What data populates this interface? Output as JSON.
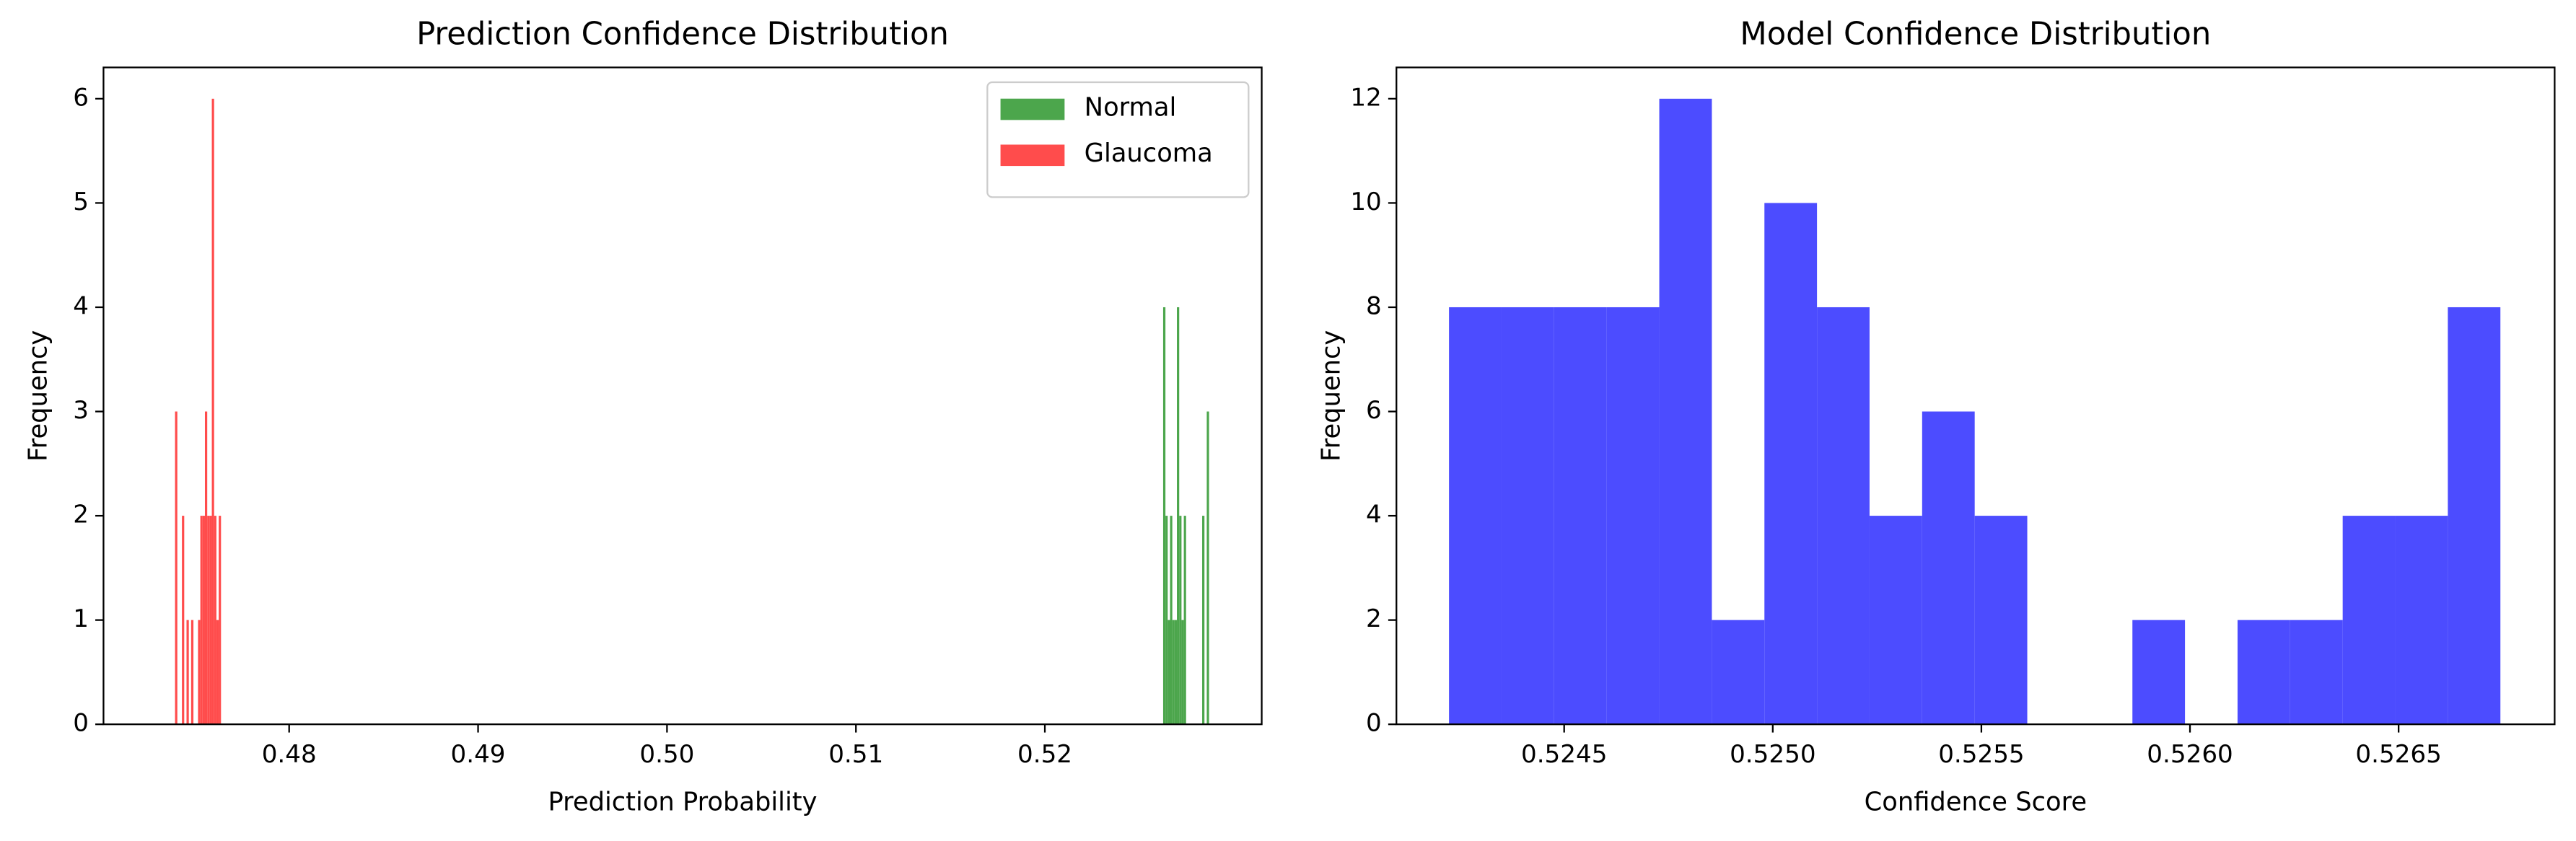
{
  "chart_data": [
    {
      "type": "histogram",
      "title": "Prediction Confidence Distribution",
      "xlabel": "Prediction Probability",
      "ylabel": "Frequency",
      "xlim": [
        0.470174,
        0.531478
      ],
      "ylim": [
        0,
        6.3
      ],
      "xticks": [
        0.48,
        0.49,
        {
          "value": 0.5,
          "label": "0.50"
        },
        0.51,
        0.52
      ],
      "yticks": [
        0,
        1,
        2,
        3,
        4,
        5,
        6
      ],
      "legend": "upper right",
      "series": [
        {
          "name": "Normal",
          "color": "#4ca64c",
          "bins": [
            0.52626,
            0.526382,
            0.526503,
            0.526625,
            0.526746,
            0.526868,
            0.526989,
            0.527111,
            0.527232,
            0.527354,
            0.527475,
            0.527597,
            0.527718,
            0.52784,
            0.527961,
            0.528083,
            0.528204,
            0.528326,
            0.528447,
            0.528569,
            0.52869
          ],
          "values": [
            4,
            2,
            1,
            2,
            1,
            1,
            4,
            2,
            1,
            2,
            0,
            0,
            0,
            0,
            0,
            0,
            0,
            2,
            0,
            3
          ]
        },
        {
          "name": "Glaucoma",
          "color": "#ff4c4c",
          "bins": [
            0.47396,
            0.474082,
            0.474203,
            0.474325,
            0.474447,
            0.474568,
            0.47469,
            0.474812,
            0.474934,
            0.475055,
            0.475177,
            0.475299,
            0.47542,
            0.475542,
            0.475664,
            0.475785,
            0.475907,
            0.476029,
            0.47615,
            0.476272,
            0.476394
          ],
          "values": [
            3,
            0,
            0,
            2,
            0,
            1,
            0,
            1,
            0,
            0,
            1,
            2,
            2,
            3,
            2,
            2,
            6,
            2,
            1,
            2
          ]
        }
      ]
    },
    {
      "type": "histogram",
      "title": "Model Confidence Distribution",
      "xlabel": "Confidence Score",
      "ylabel": "Frequency",
      "xlim": [
        0.524098,
        0.526874
      ],
      "ylim": [
        0,
        12.6
      ],
      "xticks": [
        0.5245,
        {
          "value": 0.525,
          "label": "0.5250"
        },
        0.5255,
        {
          "value": 0.526,
          "label": "0.5260"
        },
        0.5265
      ],
      "yticks": [
        0,
        2,
        4,
        6,
        8,
        10,
        12
      ],
      "color": "#4c4cff",
      "bins": [
        0.524224,
        0.52435,
        0.524476,
        0.524602,
        0.524728,
        0.524854,
        0.52498,
        0.525106,
        0.525232,
        0.525358,
        0.525484,
        0.52561,
        0.525736,
        0.525862,
        0.525988,
        0.526114,
        0.52624,
        0.526366,
        0.526492,
        0.526618,
        0.526744
      ],
      "values": [
        8,
        8,
        8,
        8,
        12,
        2,
        10,
        8,
        4,
        6,
        4,
        0,
        0,
        2,
        0,
        2,
        2,
        4,
        4,
        8
      ]
    }
  ]
}
